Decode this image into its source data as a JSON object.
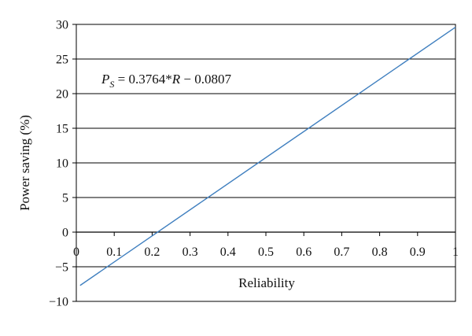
{
  "chart_data": {
    "type": "line",
    "title": "",
    "xlabel": "Reliability",
    "ylabel": "Power saving (%)",
    "xlim": [
      0,
      1
    ],
    "ylim": [
      -10,
      30
    ],
    "x_ticks": [
      0,
      0.1,
      0.2,
      0.3,
      0.4,
      0.5,
      0.6,
      0.7,
      0.8,
      0.9,
      1
    ],
    "x_tick_labels": [
      "0",
      "0.1",
      "0.2",
      "0.3",
      "0.4",
      "0.5",
      "0.6",
      "0.7",
      "0.8",
      "0.9",
      "1"
    ],
    "y_ticks": [
      -10,
      -5,
      0,
      5,
      10,
      15,
      20,
      25,
      30
    ],
    "y_tick_labels": [
      "−10",
      "−5",
      "0",
      "5",
      "10",
      "15",
      "20",
      "25",
      "30"
    ],
    "grid": "horizontal",
    "legend": "none",
    "annotation": {
      "equation_lhs_symbol": "P",
      "equation_lhs_subscript": "S",
      "equation_mid": " = 0.3764*",
      "equation_var": "R",
      "equation_rhs": " − 0.0807"
    },
    "series": [
      {
        "x": [
          0.01,
          1
        ],
        "y": [
          -7.7,
          29.6
        ],
        "color": "#3f7fbf"
      }
    ]
  }
}
